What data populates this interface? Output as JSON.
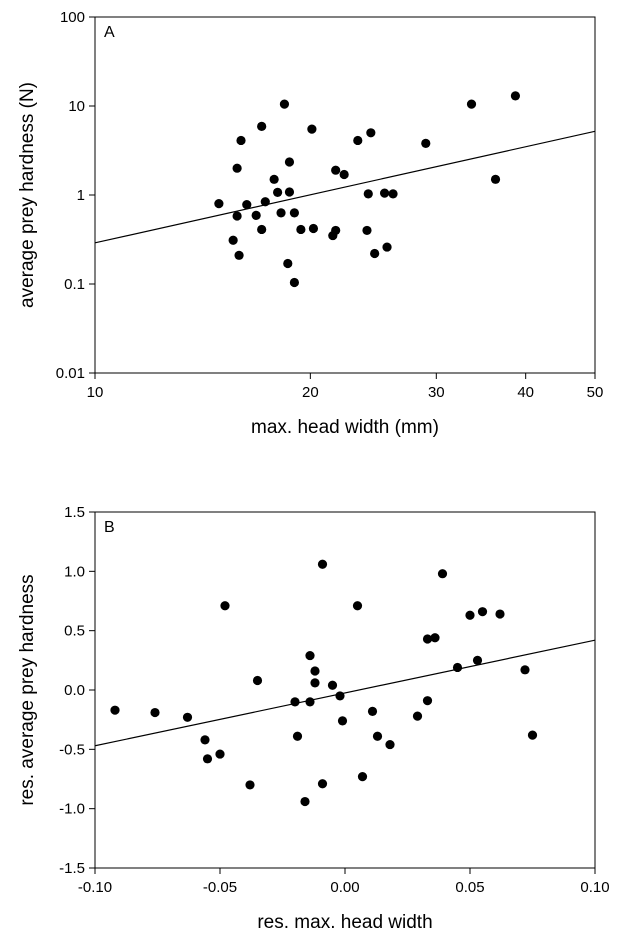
{
  "chart_data": [
    {
      "type": "scatter",
      "panel_label": "A",
      "xlabel": "max. head width (mm)",
      "ylabel": "average prey hardness (N)",
      "xscale": "log",
      "yscale": "log",
      "xlim": [
        10,
        50
      ],
      "ylim": [
        0.01,
        100
      ],
      "xticks": [
        10,
        20,
        30,
        40,
        50
      ],
      "xtick_labels": [
        "10",
        "20",
        "30",
        "40",
        "50"
      ],
      "yticks": [
        0.01,
        0.1,
        1,
        10,
        100
      ],
      "ytick_labels": [
        "0.01",
        "0.1",
        "1",
        "10",
        "100"
      ],
      "grid": false,
      "points": [
        {
          "x": 14.9,
          "y": 0.8
        },
        {
          "x": 15.6,
          "y": 0.31
        },
        {
          "x": 15.8,
          "y": 0.58
        },
        {
          "x": 15.8,
          "y": 2.0
        },
        {
          "x": 15.9,
          "y": 0.21
        },
        {
          "x": 16.0,
          "y": 4.1
        },
        {
          "x": 16.3,
          "y": 0.78
        },
        {
          "x": 16.8,
          "y": 0.59
        },
        {
          "x": 17.1,
          "y": 5.9
        },
        {
          "x": 17.1,
          "y": 0.41
        },
        {
          "x": 17.3,
          "y": 0.84
        },
        {
          "x": 17.8,
          "y": 1.5
        },
        {
          "x": 18.0,
          "y": 1.07
        },
        {
          "x": 18.2,
          "y": 0.63
        },
        {
          "x": 18.4,
          "y": 10.5
        },
        {
          "x": 18.6,
          "y": 0.17
        },
        {
          "x": 18.7,
          "y": 1.08
        },
        {
          "x": 18.7,
          "y": 2.35
        },
        {
          "x": 19.0,
          "y": 0.63
        },
        {
          "x": 19.0,
          "y": 0.104
        },
        {
          "x": 19.4,
          "y": 0.41
        },
        {
          "x": 20.1,
          "y": 5.5
        },
        {
          "x": 20.2,
          "y": 0.42
        },
        {
          "x": 21.5,
          "y": 0.35
        },
        {
          "x": 21.7,
          "y": 1.9
        },
        {
          "x": 21.7,
          "y": 0.4
        },
        {
          "x": 22.3,
          "y": 1.7
        },
        {
          "x": 23.3,
          "y": 4.1
        },
        {
          "x": 24.0,
          "y": 0.4
        },
        {
          "x": 24.1,
          "y": 1.03
        },
        {
          "x": 24.3,
          "y": 5.0
        },
        {
          "x": 24.6,
          "y": 0.22
        },
        {
          "x": 25.4,
          "y": 1.05
        },
        {
          "x": 25.6,
          "y": 0.26
        },
        {
          "x": 26.1,
          "y": 1.03
        },
        {
          "x": 29.0,
          "y": 3.8
        },
        {
          "x": 33.6,
          "y": 10.5
        },
        {
          "x": 36.3,
          "y": 1.5
        },
        {
          "x": 38.7,
          "y": 13.0
        }
      ],
      "fit_line": [
        {
          "x": 10,
          "y": 0.29
        },
        {
          "x": 50,
          "y": 5.2
        }
      ]
    },
    {
      "type": "scatter",
      "panel_label": "B",
      "xlabel": "res. max. head width",
      "ylabel": "res. average prey hardness",
      "xlim": [
        -0.1,
        0.1
      ],
      "ylim": [
        -1.5,
        1.5
      ],
      "xticks": [
        -0.1,
        -0.05,
        0.0,
        0.05,
        0.1
      ],
      "xtick_labels": [
        "-0.10",
        "-0.05",
        "0.00",
        "0.05",
        "0.10"
      ],
      "yticks": [
        -1.5,
        -1.0,
        -0.5,
        0.0,
        0.5,
        1.0,
        1.5
      ],
      "ytick_labels": [
        "-1.5",
        "-1.0",
        "-0.5",
        "0.0",
        "0.5",
        "1.0",
        "1.5"
      ],
      "grid": false,
      "points": [
        {
          "x": -0.092,
          "y": -0.17
        },
        {
          "x": -0.076,
          "y": -0.19
        },
        {
          "x": -0.063,
          "y": -0.23
        },
        {
          "x": -0.056,
          "y": -0.42
        },
        {
          "x": -0.055,
          "y": -0.58
        },
        {
          "x": -0.05,
          "y": -0.54
        },
        {
          "x": -0.048,
          "y": 0.71
        },
        {
          "x": -0.038,
          "y": -0.8
        },
        {
          "x": -0.035,
          "y": 0.08
        },
        {
          "x": -0.02,
          "y": -0.1
        },
        {
          "x": -0.019,
          "y": -0.39
        },
        {
          "x": -0.016,
          "y": -0.94
        },
        {
          "x": -0.014,
          "y": -0.1
        },
        {
          "x": -0.014,
          "y": 0.29
        },
        {
          "x": -0.012,
          "y": 0.16
        },
        {
          "x": -0.012,
          "y": 0.06
        },
        {
          "x": -0.009,
          "y": 1.06
        },
        {
          "x": -0.009,
          "y": -0.79
        },
        {
          "x": -0.005,
          "y": 0.04
        },
        {
          "x": -0.002,
          "y": -0.05
        },
        {
          "x": -0.001,
          "y": -0.26
        },
        {
          "x": 0.005,
          "y": 0.71
        },
        {
          "x": 0.007,
          "y": -0.73
        },
        {
          "x": 0.011,
          "y": -0.18
        },
        {
          "x": 0.013,
          "y": -0.39
        },
        {
          "x": 0.018,
          "y": -0.46
        },
        {
          "x": 0.029,
          "y": -0.22
        },
        {
          "x": 0.033,
          "y": -0.09
        },
        {
          "x": 0.033,
          "y": 0.43
        },
        {
          "x": 0.036,
          "y": 0.44
        },
        {
          "x": 0.039,
          "y": 0.98
        },
        {
          "x": 0.045,
          "y": 0.19
        },
        {
          "x": 0.05,
          "y": 0.63
        },
        {
          "x": 0.053,
          "y": 0.25
        },
        {
          "x": 0.055,
          "y": 0.66
        },
        {
          "x": 0.062,
          "y": 0.64
        },
        {
          "x": 0.072,
          "y": 0.17
        },
        {
          "x": 0.075,
          "y": -0.38
        }
      ],
      "fit_line": [
        {
          "x": -0.1,
          "y": -0.47
        },
        {
          "x": 0.1,
          "y": 0.42
        }
      ]
    }
  ]
}
